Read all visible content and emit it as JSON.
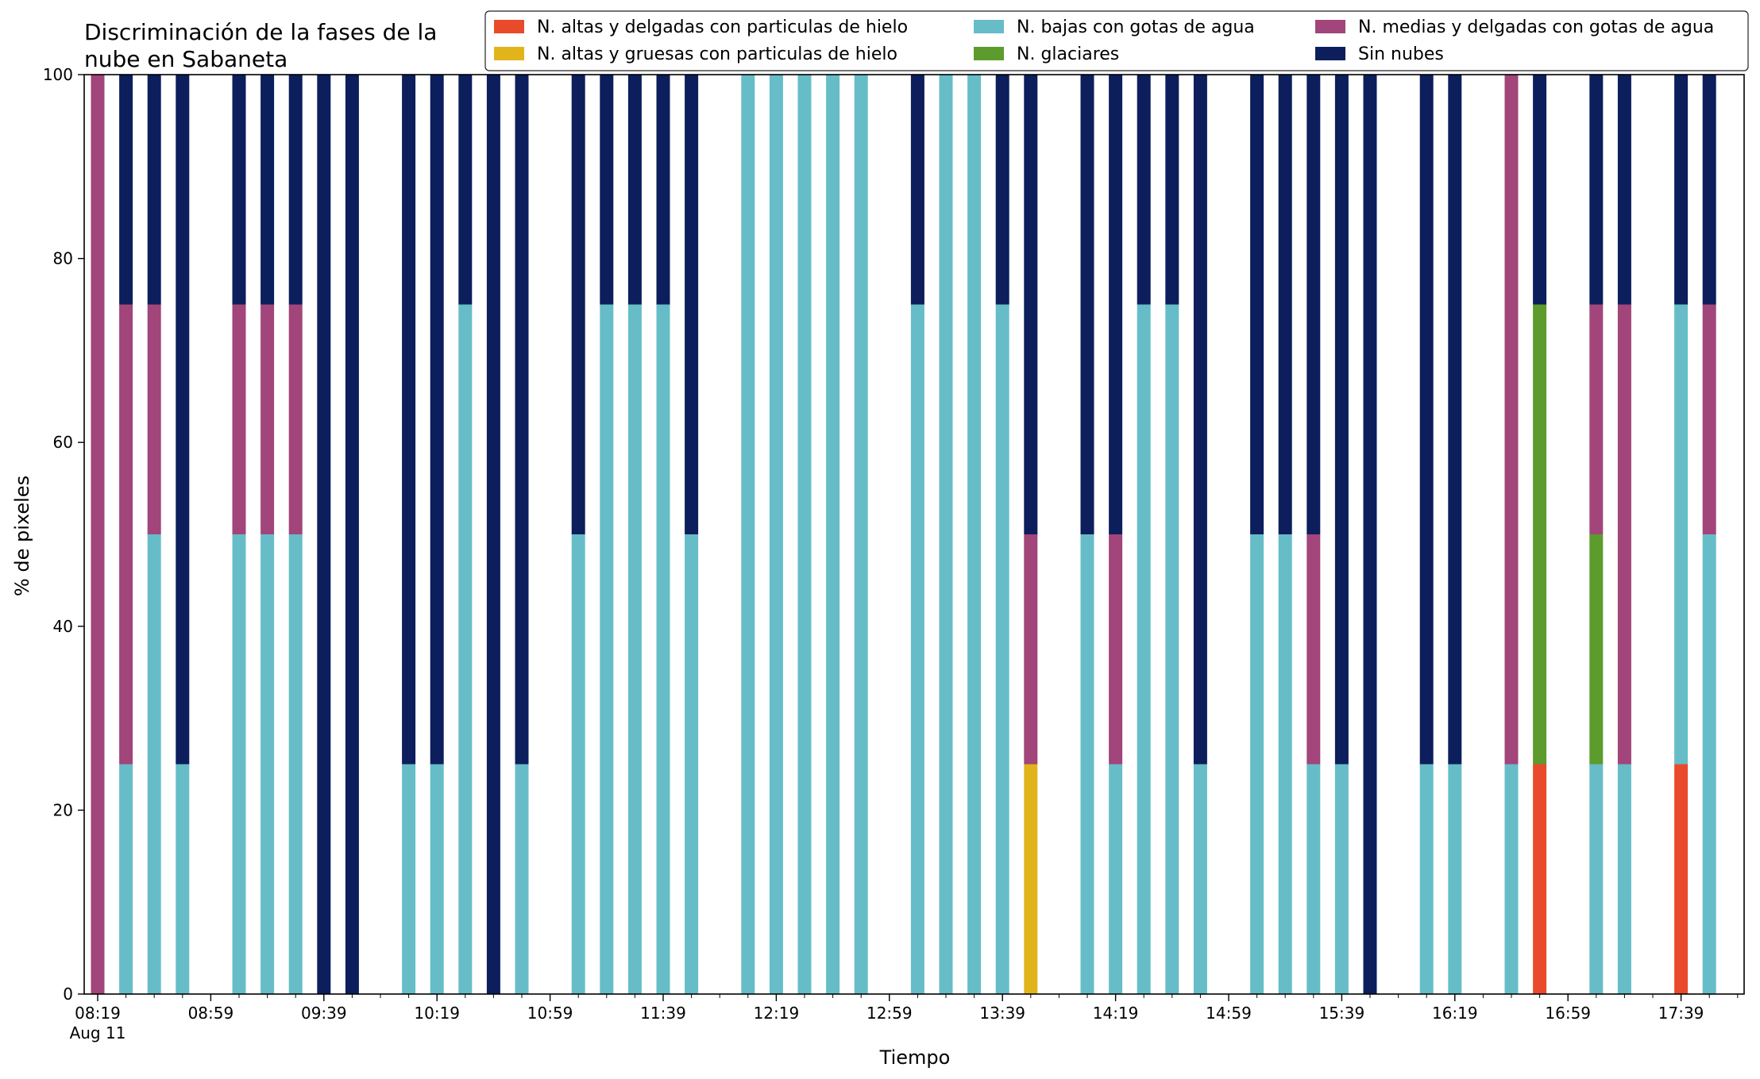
{
  "chart_data": {
    "type": "bar",
    "stacked": true,
    "title_lines": [
      "Discriminación de la fases de la",
      "nube en Sabaneta"
    ],
    "xlabel": "Tiempo",
    "ylabel": "% de pixeles",
    "ylim": [
      0,
      100
    ],
    "yticks": [
      "0",
      "20",
      "40",
      "60",
      "80",
      "100"
    ],
    "grid": false,
    "legend_position": "top-right",
    "xticks": [
      "08:19",
      "08:59",
      "09:39",
      "10:19",
      "10:59",
      "11:39",
      "12:19",
      "12:59",
      "13:39",
      "14:19",
      "14:59",
      "15:39",
      "16:19",
      "16:59",
      "17:39"
    ],
    "x_date_label": "Aug 11",
    "times": [
      "08:19",
      "08:29",
      "08:39",
      "08:49",
      "09:09",
      "09:19",
      "09:29",
      "09:39",
      "09:49",
      "10:09",
      "10:19",
      "10:29",
      "10:39",
      "10:49",
      "11:09",
      "11:19",
      "11:29",
      "11:39",
      "11:49",
      "12:09",
      "12:19",
      "12:29",
      "12:39",
      "12:49",
      "13:09",
      "13:19",
      "13:29",
      "13:39",
      "13:49",
      "14:09",
      "14:19",
      "14:29",
      "14:39",
      "14:49",
      "15:09",
      "15:19",
      "15:29",
      "15:39",
      "15:49",
      "16:09",
      "16:19",
      "16:39",
      "16:49",
      "17:09",
      "17:19",
      "17:39",
      "17:49"
    ],
    "series": [
      {
        "name": "N. altas y delgadas con particulas de hielo",
        "color": "#ea4a2c",
        "values": [
          0,
          0,
          0,
          0,
          0,
          0,
          0,
          0,
          0,
          0,
          0,
          0,
          0,
          0,
          0,
          0,
          0,
          0,
          0,
          0,
          0,
          0,
          0,
          0,
          0,
          0,
          0,
          0,
          0,
          0,
          0,
          0,
          0,
          0,
          0,
          0,
          0,
          0,
          0,
          0,
          0,
          0,
          25,
          0,
          0,
          25,
          0
        ]
      },
      {
        "name": "N. altas y gruesas con particulas de hielo",
        "color": "#e1b41c",
        "values": [
          0,
          0,
          0,
          0,
          0,
          0,
          0,
          0,
          0,
          0,
          0,
          0,
          0,
          0,
          0,
          0,
          0,
          0,
          0,
          0,
          0,
          0,
          0,
          0,
          0,
          0,
          0,
          0,
          25,
          0,
          0,
          0,
          0,
          0,
          0,
          0,
          0,
          0,
          0,
          0,
          0,
          0,
          0,
          0,
          0,
          0,
          0
        ]
      },
      {
        "name": "N. bajas con gotas de agua",
        "color": "#66bdc8",
        "values": [
          0,
          25,
          50,
          25,
          50,
          50,
          50,
          0,
          0,
          25,
          25,
          75,
          0,
          25,
          50,
          75,
          75,
          75,
          50,
          100,
          100,
          100,
          100,
          100,
          75,
          100,
          100,
          75,
          0,
          50,
          25,
          75,
          75,
          25,
          50,
          50,
          25,
          25,
          0,
          25,
          25,
          25,
          0,
          25,
          25,
          50,
          50
        ]
      },
      {
        "name": "N. glaciares",
        "color": "#5d9c2c",
        "values": [
          0,
          0,
          0,
          0,
          0,
          0,
          0,
          0,
          0,
          0,
          0,
          0,
          0,
          0,
          0,
          0,
          0,
          0,
          0,
          0,
          0,
          0,
          0,
          0,
          0,
          0,
          0,
          0,
          0,
          0,
          0,
          0,
          0,
          0,
          0,
          0,
          0,
          0,
          0,
          0,
          0,
          0,
          50,
          25,
          0,
          0,
          0
        ]
      },
      {
        "name": "N. medias y delgadas con gotas de agua",
        "color": "#a1457a",
        "values": [
          100,
          50,
          25,
          0,
          25,
          25,
          25,
          0,
          0,
          0,
          0,
          0,
          0,
          0,
          0,
          0,
          0,
          0,
          0,
          0,
          0,
          0,
          0,
          0,
          0,
          0,
          0,
          0,
          25,
          0,
          25,
          0,
          0,
          0,
          0,
          0,
          25,
          0,
          0,
          0,
          0,
          75,
          0,
          25,
          50,
          0,
          25
        ]
      },
      {
        "name": "Sin nubes",
        "color": "#0c1e5c",
        "values": [
          0,
          25,
          25,
          75,
          25,
          25,
          25,
          100,
          100,
          75,
          75,
          25,
          100,
          75,
          50,
          25,
          25,
          25,
          50,
          0,
          0,
          0,
          0,
          0,
          25,
          0,
          0,
          25,
          50,
          50,
          50,
          25,
          25,
          75,
          50,
          50,
          50,
          75,
          100,
          75,
          75,
          0,
          25,
          25,
          25,
          25,
          25
        ]
      }
    ]
  }
}
